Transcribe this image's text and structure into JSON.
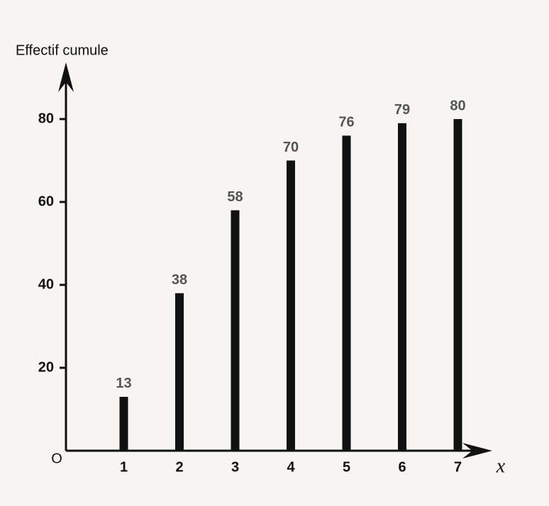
{
  "chart_data": {
    "type": "bar",
    "y_label": "Effectif cumule",
    "x_label": "x",
    "origin_label": "O",
    "x": [
      1,
      2,
      3,
      4,
      5,
      6,
      7
    ],
    "values": [
      13,
      38,
      58,
      70,
      76,
      79,
      80
    ],
    "color": "#111111",
    "xlim": [
      0,
      7.5
    ],
    "xticks": [
      1,
      2,
      3,
      4,
      5,
      6,
      7
    ],
    "ylim": [
      0,
      90
    ],
    "yticks": [
      20,
      40,
      60,
      80
    ],
    "grid": false
  }
}
